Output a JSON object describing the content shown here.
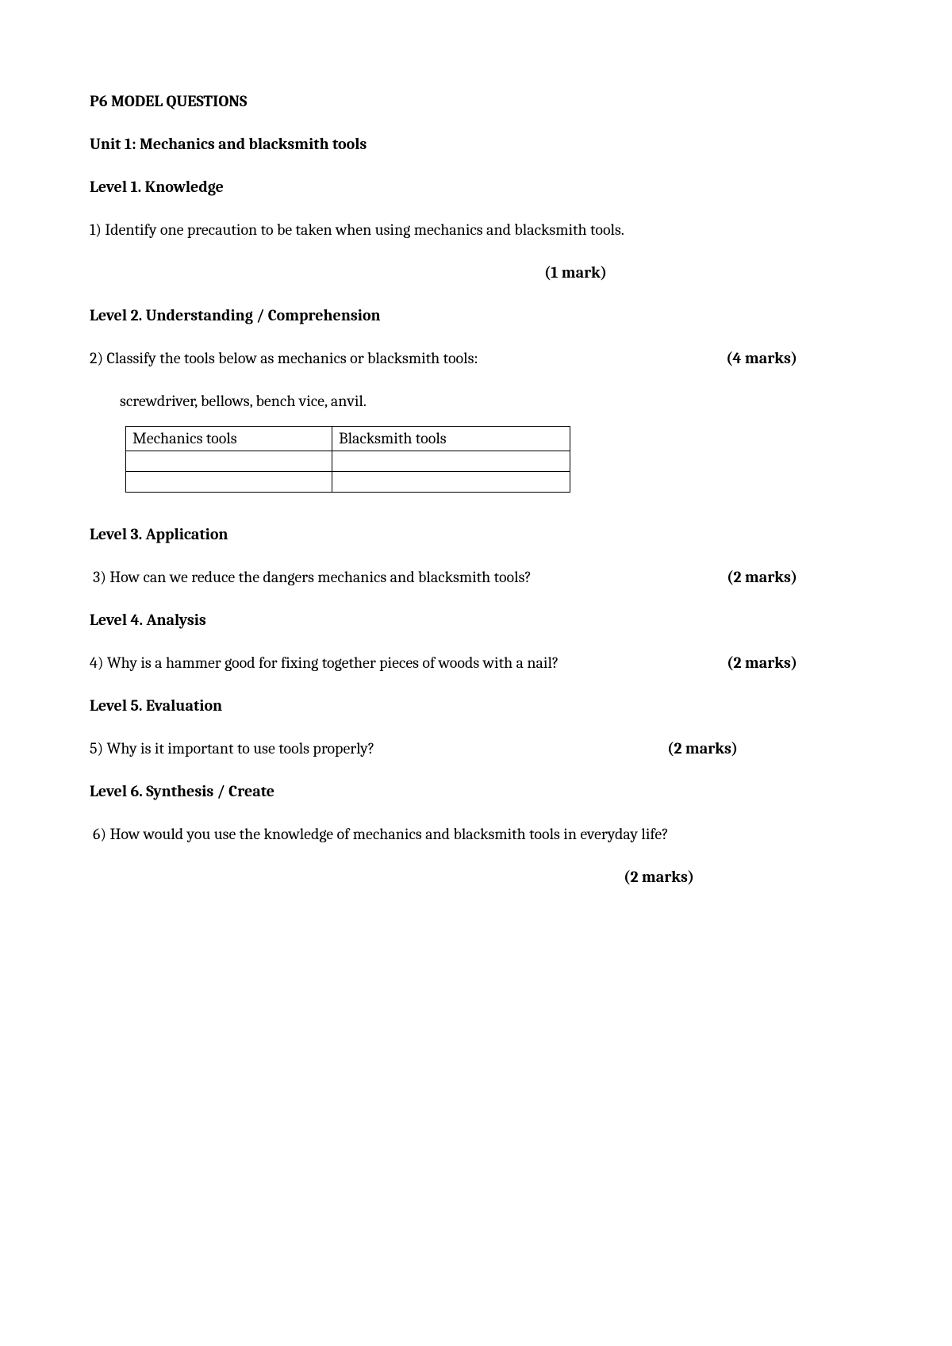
{
  "title": "P6 MODEL QUESTIONS",
  "unit": "Unit 1: Mechanics and blacksmith tools",
  "level1": {
    "heading": "Level 1. Knowledge",
    "q": "1) Identify one precaution to be taken when using mechanics and blacksmith tools.",
    "marks": "(1 mark)"
  },
  "level2": {
    "heading": "Level 2. Understanding / Comprehension",
    "q": "2) Classify the tools below as mechanics or blacksmith tools:",
    "marks": "(4 marks)",
    "items": "screwdriver, bellows, bench vice, anvil.",
    "table": {
      "col1_header": "Mechanics tools",
      "col2_header": "Blacksmith tools",
      "rows": [
        [
          "",
          ""
        ],
        [
          "",
          ""
        ]
      ]
    }
  },
  "level3": {
    "heading": "Level 3. Application",
    "q": "3) How can we reduce the dangers mechanics and blacksmith tools?",
    "marks": "(2 marks)"
  },
  "level4": {
    "heading": "Level 4. Analysis",
    "q": "4) Why is a hammer good for fixing together pieces of woods with a nail?",
    "marks": "(2 marks)"
  },
  "level5": {
    "heading": "Level 5. Evaluation",
    "q": "5) Why is it important to use tools properly?",
    "marks": "(2 marks)"
  },
  "level6": {
    "heading": "Level 6. Synthesis / Create",
    "q": "6) How would you use the knowledge of   mechanics and blacksmith tools in everyday life?",
    "marks": "(2 marks)"
  }
}
